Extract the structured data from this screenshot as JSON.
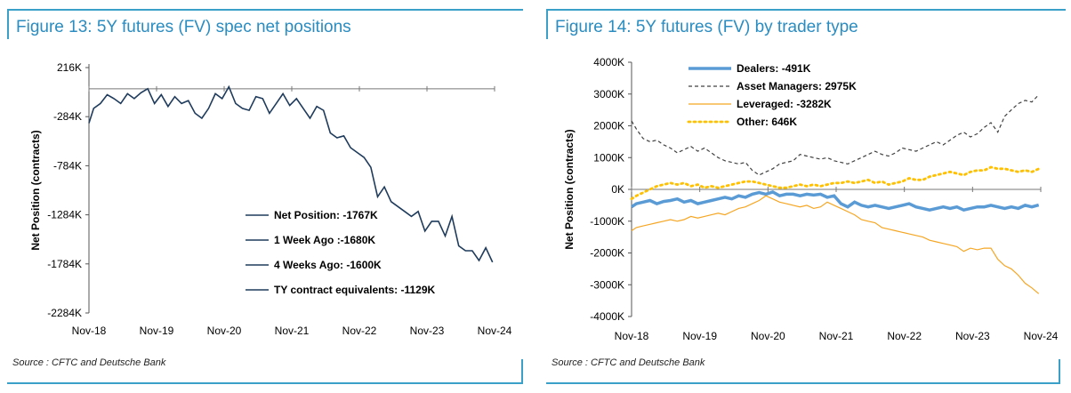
{
  "source_text": "Source : CFTC and Deutsche Bank",
  "chart_data": [
    {
      "type": "line",
      "title": "Figure 13: 5Y futures (FV) spec net positions",
      "ylabel": "Net Position (contracts)",
      "xlabel": "",
      "x_ticks": [
        "Nov-18",
        "Nov-19",
        "Nov-20",
        "Nov-21",
        "Nov-22",
        "Nov-23",
        "Nov-24"
      ],
      "y_ticks": [
        "216K",
        "-284K",
        "-784K",
        "-1284K",
        "-1784K",
        "-2284K"
      ],
      "y_tick_values": [
        216,
        -284,
        -784,
        -1284,
        -1784,
        -2284
      ],
      "ylim": [
        -2284,
        216
      ],
      "xlim": [
        2018.83,
        2024.83
      ],
      "grid": false,
      "legend_position": "lower-right",
      "legend": [
        "Net Position: -1767K",
        "1 Week Ago :-1680K",
        "4 Weeks Ago: -1600K",
        "TY contract equivalents: -1129K"
      ],
      "series": [
        {
          "name": "Net Position: -1767K",
          "color": "#1f3b5c",
          "x": [
            2018.83,
            2018.9,
            2019.0,
            2019.1,
            2019.2,
            2019.3,
            2019.4,
            2019.5,
            2019.6,
            2019.7,
            2019.8,
            2019.9,
            2020.0,
            2020.1,
            2020.2,
            2020.3,
            2020.4,
            2020.5,
            2020.6,
            2020.7,
            2020.8,
            2020.9,
            2021.0,
            2021.1,
            2021.2,
            2021.3,
            2021.4,
            2021.5,
            2021.6,
            2021.7,
            2021.8,
            2021.9,
            2022.0,
            2022.1,
            2022.2,
            2022.3,
            2022.4,
            2022.5,
            2022.6,
            2022.7,
            2022.8,
            2022.9,
            2023.0,
            2023.1,
            2023.2,
            2023.3,
            2023.4,
            2023.5,
            2023.6,
            2023.7,
            2023.8,
            2023.9,
            2024.0,
            2024.1,
            2024.2,
            2024.3,
            2024.4,
            2024.5,
            2024.6,
            2024.7,
            2024.8
          ],
          "y": [
            -350,
            -200,
            -150,
            -60,
            -100,
            -150,
            -50,
            -100,
            -40,
            0,
            -150,
            -60,
            -180,
            -80,
            -150,
            -120,
            -250,
            -300,
            -200,
            -50,
            -100,
            20,
            -150,
            -200,
            -220,
            -80,
            -100,
            -250,
            -150,
            -50,
            -170,
            -100,
            -200,
            -300,
            -180,
            -220,
            -450,
            -500,
            -480,
            -600,
            -650,
            -700,
            -800,
            -1100,
            -1000,
            -1150,
            -1200,
            -1250,
            -1300,
            -1250,
            -1450,
            -1350,
            -1350,
            -1500,
            -1300,
            -1600,
            -1650,
            -1650,
            -1750,
            -1620,
            -1767
          ]
        }
      ]
    },
    {
      "type": "line",
      "title": "Figure 14: 5Y futures (FV) by trader type",
      "ylabel": "Net Position (contracts)",
      "xlabel": "",
      "x_ticks": [
        "Nov-18",
        "Nov-19",
        "Nov-20",
        "Nov-21",
        "Nov-22",
        "Nov-23",
        "Nov-24"
      ],
      "y_ticks": [
        "4000K",
        "3000K",
        "2000K",
        "1000K",
        "0K",
        "-1000K",
        "-2000K",
        "-3000K",
        "-4000K"
      ],
      "y_tick_values": [
        4000,
        3000,
        2000,
        1000,
        0,
        -1000,
        -2000,
        -3000,
        -4000
      ],
      "ylim": [
        -4000,
        4000
      ],
      "xlim": [
        2018.83,
        2024.83
      ],
      "grid": false,
      "legend_position": "top-left",
      "x": [
        2018.83,
        2018.9,
        2019.0,
        2019.1,
        2019.2,
        2019.3,
        2019.4,
        2019.5,
        2019.6,
        2019.7,
        2019.8,
        2019.9,
        2020.0,
        2020.1,
        2020.2,
        2020.3,
        2020.4,
        2020.5,
        2020.6,
        2020.7,
        2020.8,
        2020.9,
        2021.0,
        2021.1,
        2021.2,
        2021.3,
        2021.4,
        2021.5,
        2021.6,
        2021.7,
        2021.8,
        2021.9,
        2022.0,
        2022.1,
        2022.2,
        2022.3,
        2022.4,
        2022.5,
        2022.6,
        2022.7,
        2022.8,
        2022.9,
        2023.0,
        2023.1,
        2023.2,
        2023.3,
        2023.4,
        2023.5,
        2023.6,
        2023.7,
        2023.8,
        2023.9,
        2024.0,
        2024.1,
        2024.2,
        2024.3,
        2024.4,
        2024.5,
        2024.6,
        2024.7,
        2024.8
      ],
      "series": [
        {
          "name": "Dealers: -491K",
          "color": "#5b9bd5",
          "style": "thick",
          "y": [
            -550,
            -450,
            -400,
            -350,
            -450,
            -380,
            -350,
            -300,
            -400,
            -350,
            -450,
            -400,
            -350,
            -300,
            -250,
            -300,
            -200,
            -250,
            -150,
            -100,
            -150,
            -80,
            -200,
            -150,
            -150,
            -200,
            -150,
            -180,
            -150,
            -250,
            -200,
            -450,
            -550,
            -400,
            -500,
            -550,
            -500,
            -550,
            -600,
            -550,
            -500,
            -450,
            -550,
            -600,
            -650,
            -600,
            -550,
            -600,
            -550,
            -650,
            -600,
            -550,
            -550,
            -500,
            -550,
            -600,
            -550,
            -600,
            -500,
            -550,
            -491
          ]
        },
        {
          "name": "Asset Managers: 2975K",
          "color": "#404040",
          "style": "dash",
          "y": [
            2150,
            1900,
            1600,
            1500,
            1550,
            1400,
            1300,
            1150,
            1250,
            1350,
            1200,
            1300,
            1150,
            1000,
            900,
            850,
            800,
            850,
            600,
            450,
            550,
            650,
            800,
            850,
            900,
            1100,
            1050,
            1000,
            950,
            1000,
            900,
            850,
            800,
            900,
            1000,
            1100,
            1200,
            1100,
            1050,
            1150,
            1300,
            1250,
            1200,
            1300,
            1400,
            1500,
            1400,
            1550,
            1700,
            1800,
            1650,
            1750,
            1950,
            2100,
            1800,
            2300,
            2500,
            2700,
            2800,
            2750,
            2975
          ]
        },
        {
          "name": "Leveraged: -3282K",
          "color": "#f5a623",
          "style": "solid",
          "y": [
            -1300,
            -1200,
            -1150,
            -1100,
            -1050,
            -1000,
            -950,
            -1000,
            -950,
            -850,
            -900,
            -850,
            -800,
            -750,
            -800,
            -700,
            -600,
            -550,
            -450,
            -350,
            -200,
            -300,
            -400,
            -450,
            -500,
            -550,
            -500,
            -600,
            -550,
            -400,
            -500,
            -600,
            -700,
            -800,
            -950,
            -1000,
            -1050,
            -1200,
            -1250,
            -1300,
            -1350,
            -1400,
            -1450,
            -1500,
            -1600,
            -1650,
            -1700,
            -1750,
            -1800,
            -1950,
            -1850,
            -1900,
            -1850,
            -1850,
            -2200,
            -2400,
            -2500,
            -2700,
            -2950,
            -3100,
            -3282
          ]
        },
        {
          "name": "Other: 646K",
          "color": "#ffc000",
          "style": "dot",
          "y": [
            -300,
            -200,
            -100,
            0,
            100,
            150,
            200,
            150,
            200,
            100,
            150,
            50,
            100,
            50,
            100,
            150,
            200,
            250,
            250,
            200,
            150,
            100,
            50,
            50,
            100,
            150,
            100,
            150,
            100,
            150,
            200,
            200,
            250,
            200,
            250,
            300,
            200,
            250,
            150,
            200,
            250,
            350,
            300,
            300,
            400,
            450,
            500,
            550,
            500,
            450,
            550,
            600,
            600,
            700,
            650,
            650,
            600,
            550,
            600,
            550,
            646
          ]
        }
      ]
    }
  ]
}
